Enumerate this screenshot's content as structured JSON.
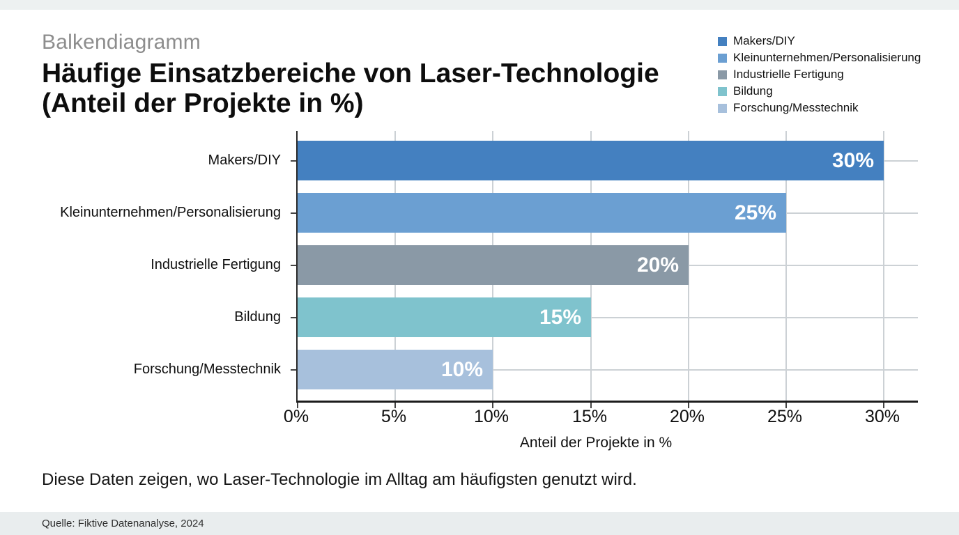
{
  "header": {
    "kicker": "Balkendiagramm",
    "title_lines": [
      "Häufige Einsatzbereiche von Laser-Technologie",
      "(Anteil der Projekte in %)"
    ]
  },
  "note": "Diese Daten zeigen, wo Laser-Technologie im Alltag am häufigsten genutzt wird.",
  "source": "Quelle: Fiktive Datenanalyse, 2024",
  "chart_data": {
    "type": "bar",
    "orientation": "horizontal",
    "title": "Häufige Einsatzbereiche von Laser-Technologie (Anteil der Projekte in %)",
    "categories": [
      "Makers/DIY",
      "Kleinunternehmen/Personalisierung",
      "Industrielle Fertigung",
      "Bildung",
      "Forschung/Messtechnik"
    ],
    "values": [
      30,
      25,
      20,
      15,
      10
    ],
    "value_labels": [
      "30%",
      "25%",
      "20%",
      "15%",
      "10%"
    ],
    "bar_colors": [
      "#4480c0",
      "#6b9fd2",
      "#8a99a6",
      "#7fc3cd",
      "#a7c0dc"
    ],
    "xlabel": "Anteil der Projekte in %",
    "x_tick_values": [
      0,
      5,
      10,
      15,
      20,
      25,
      30
    ],
    "x_tick_labels": [
      "0%",
      "5%",
      "10%",
      "15%",
      "20%",
      "25%",
      "30%"
    ],
    "xlim": [
      0,
      31.75
    ],
    "grid": true,
    "legend": {
      "position": "top-right",
      "entries": [
        "Makers/DIY",
        "Kleinunternehmen/Personalisierung",
        "Industrielle Fertigung",
        "Bildung",
        "Forschung/Messtechnik"
      ]
    }
  }
}
